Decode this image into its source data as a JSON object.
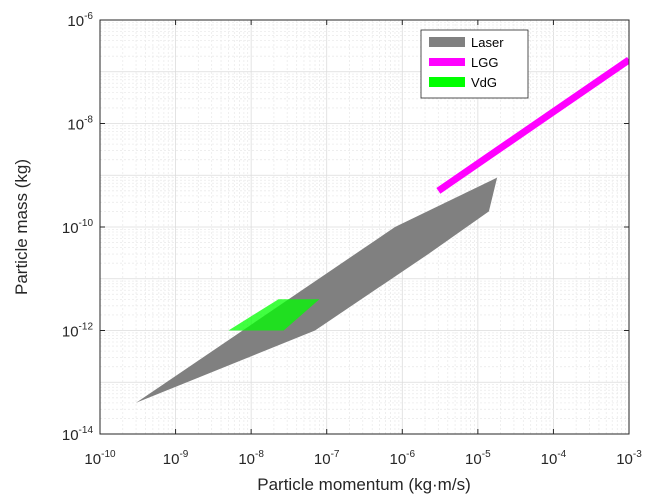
{
  "chart_data": {
    "type": "area",
    "title": "",
    "xlabel": "Particle momentum (kg·m/s)",
    "ylabel": "Particle mass (kg)",
    "xscale": "log",
    "yscale": "log",
    "xlim": [
      1e-10,
      0.001
    ],
    "ylim": [
      1e-14,
      1e-06
    ],
    "grid": true,
    "legend_position": "top-right",
    "x_ticks": [
      {
        "base": "10",
        "exp": "-10"
      },
      {
        "base": "10",
        "exp": "-9"
      },
      {
        "base": "10",
        "exp": "-8"
      },
      {
        "base": "10",
        "exp": "-7"
      },
      {
        "base": "10",
        "exp": "-6"
      },
      {
        "base": "10",
        "exp": "-5"
      },
      {
        "base": "10",
        "exp": "-4"
      },
      {
        "base": "10",
        "exp": "-3"
      }
    ],
    "y_ticks": [
      {
        "base": "10",
        "exp": "-14"
      },
      {
        "base": "10",
        "exp": "-12"
      },
      {
        "base": "10",
        "exp": "-10"
      },
      {
        "base": "10",
        "exp": "-8"
      },
      {
        "base": "10",
        "exp": "-6"
      }
    ],
    "series": [
      {
        "name": "Laser",
        "kind": "polygon",
        "color": "#808080",
        "x": [
          3e-10,
          8e-07,
          1.8e-05,
          1.4e-05,
          2.2e-06,
          7e-08
        ],
        "y": [
          4e-14,
          1e-10,
          9e-10,
          2e-10,
          3e-11,
          1e-12
        ]
      },
      {
        "name": "LGG",
        "kind": "line",
        "color": "#ff00ff",
        "x": [
          3e-06,
          0.001
        ],
        "y": [
          5e-10,
          1.7e-07
        ]
      },
      {
        "name": "VdG",
        "kind": "polygon",
        "color": "#00ff00",
        "opacity": 0.75,
        "x": [
          5e-09,
          2.3e-08,
          8e-08,
          2.7e-08
        ],
        "y": [
          1e-12,
          4e-12,
          4e-12,
          1e-12
        ]
      }
    ]
  }
}
